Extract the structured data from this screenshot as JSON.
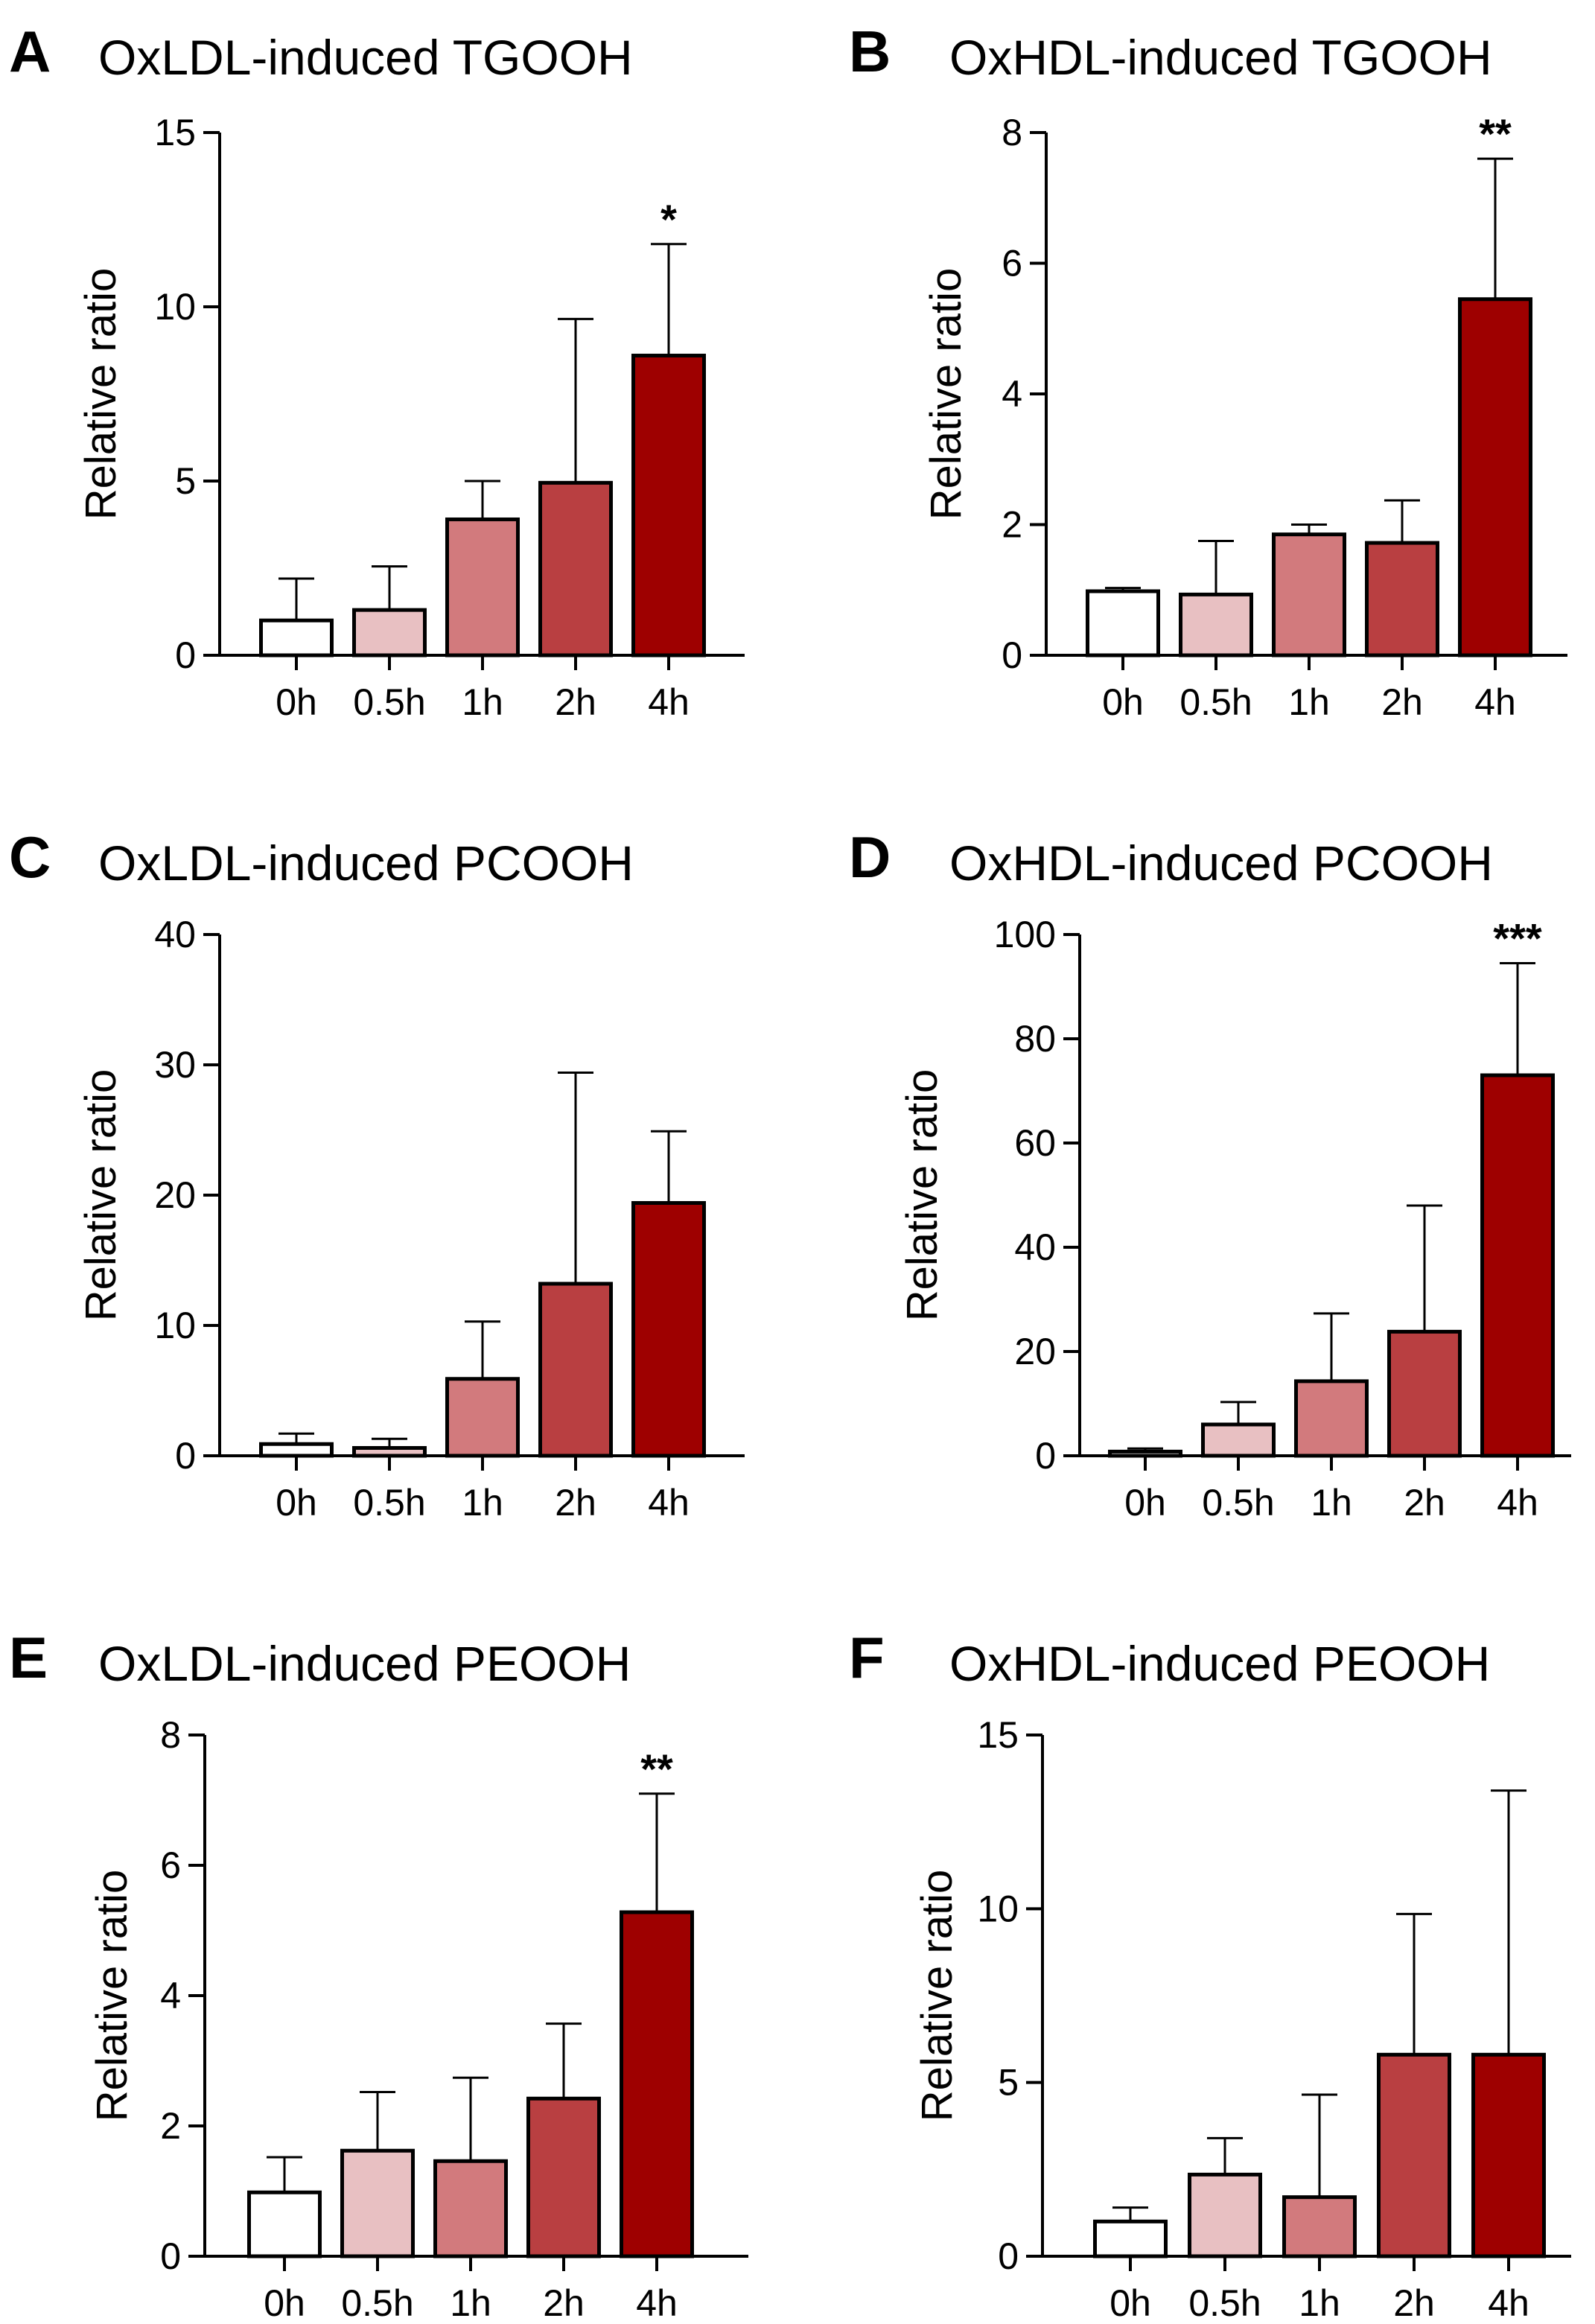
{
  "chart_data": [
    {
      "type": "bar",
      "panel": "A",
      "title": "OxLDL-induced  TGOOH",
      "xlabel": "",
      "ylabel": "Relative ratio",
      "categories": [
        "0h",
        "0.5h",
        "1h",
        "2h",
        "4h"
      ],
      "values": [
        1.0,
        1.3,
        3.9,
        4.95,
        8.6
      ],
      "errors": [
        1.2,
        1.25,
        1.1,
        4.7,
        3.2
      ],
      "significance": [
        "",
        "",
        "",
        "",
        "*"
      ],
      "ylim": [
        0,
        15
      ],
      "yticks": [
        "0",
        "5",
        "10",
        "15"
      ],
      "ytick_values": [
        0,
        5,
        10,
        15
      ],
      "grid": false
    },
    {
      "type": "bar",
      "panel": "B",
      "title": "OxHDL-induced  TGOOH",
      "xlabel": "",
      "ylabel": "Relative ratio",
      "categories": [
        "0h",
        "0.5h",
        "1h",
        "2h",
        "4h"
      ],
      "values": [
        0.98,
        0.93,
        1.85,
        1.72,
        5.45
      ],
      "errors": [
        0.05,
        0.82,
        0.15,
        0.65,
        2.15
      ],
      "significance": [
        "",
        "",
        "",
        "",
        "**"
      ],
      "ylim": [
        0,
        8
      ],
      "yticks": [
        "0",
        "2",
        "4",
        "6",
        "8"
      ],
      "ytick_values": [
        0,
        2,
        4,
        6,
        8
      ],
      "grid": false
    },
    {
      "type": "bar",
      "panel": "C",
      "title": "OxLDL-induced  PCOOH",
      "xlabel": "",
      "ylabel": "Relative ratio",
      "categories": [
        "0h",
        "0.5h",
        "1h",
        "2h",
        "4h"
      ],
      "values": [
        0.9,
        0.6,
        5.9,
        13.2,
        19.4
      ],
      "errors": [
        0.8,
        0.7,
        4.4,
        16.2,
        5.5
      ],
      "significance": [
        "",
        "",
        "",
        "",
        ""
      ],
      "ylim": [
        0,
        40
      ],
      "yticks": [
        "0",
        "10",
        "20",
        "30",
        "40"
      ],
      "ytick_values": [
        0,
        10,
        20,
        30,
        40
      ],
      "grid": false
    },
    {
      "type": "bar",
      "panel": "D",
      "title": "OxHDL-induced  PCOOH",
      "xlabel": "",
      "ylabel": "Relative ratio",
      "categories": [
        "0h",
        "0.5h",
        "1h",
        "2h",
        "4h"
      ],
      "values": [
        0.8,
        6.0,
        14.3,
        23.8,
        73.0
      ],
      "errors": [
        0.6,
        4.3,
        13.0,
        24.2,
        21.5
      ],
      "significance": [
        "",
        "",
        "",
        "",
        "***"
      ],
      "ylim": [
        0,
        100
      ],
      "yticks": [
        "0",
        "20",
        "40",
        "60",
        "80",
        "100"
      ],
      "ytick_values": [
        0,
        20,
        40,
        60,
        80,
        100
      ],
      "grid": false
    },
    {
      "type": "bar",
      "panel": "E",
      "title": "OxLDL-induced  PEOOH",
      "xlabel": "",
      "ylabel": "Relative ratio",
      "categories": [
        "0h",
        "0.5h",
        "1h",
        "2h",
        "4h"
      ],
      "values": [
        0.98,
        1.62,
        1.46,
        2.42,
        5.28
      ],
      "errors": [
        0.54,
        0.9,
        1.28,
        1.15,
        1.82
      ],
      "significance": [
        "",
        "",
        "",
        "",
        "**"
      ],
      "ylim": [
        0,
        8
      ],
      "yticks": [
        "0",
        "2",
        "4",
        "6",
        "8"
      ],
      "ytick_values": [
        0,
        2,
        4,
        6,
        8
      ],
      "grid": false
    },
    {
      "type": "bar",
      "panel": "F",
      "title": "OxHDL-induced  PEOOH",
      "xlabel": "",
      "ylabel": "Relative ratio",
      "categories": [
        "0h",
        "0.5h",
        "1h",
        "2h",
        "4h"
      ],
      "values": [
        1.0,
        2.35,
        1.7,
        5.8,
        5.8
      ],
      "errors": [
        0.4,
        1.05,
        2.95,
        4.05,
        7.6
      ],
      "significance": [
        "",
        "",
        "",
        "",
        ""
      ],
      "ylim": [
        0,
        15
      ],
      "yticks": [
        "0",
        "5",
        "10",
        "15"
      ],
      "ytick_values": [
        0,
        5,
        10,
        15
      ],
      "grid": false
    }
  ],
  "colors": {
    "bar_fills": [
      "#ffffff",
      "#e8c0c2",
      "#d27a7d",
      "#b93f41",
      "#9e0000"
    ],
    "stroke": "#000000"
  }
}
